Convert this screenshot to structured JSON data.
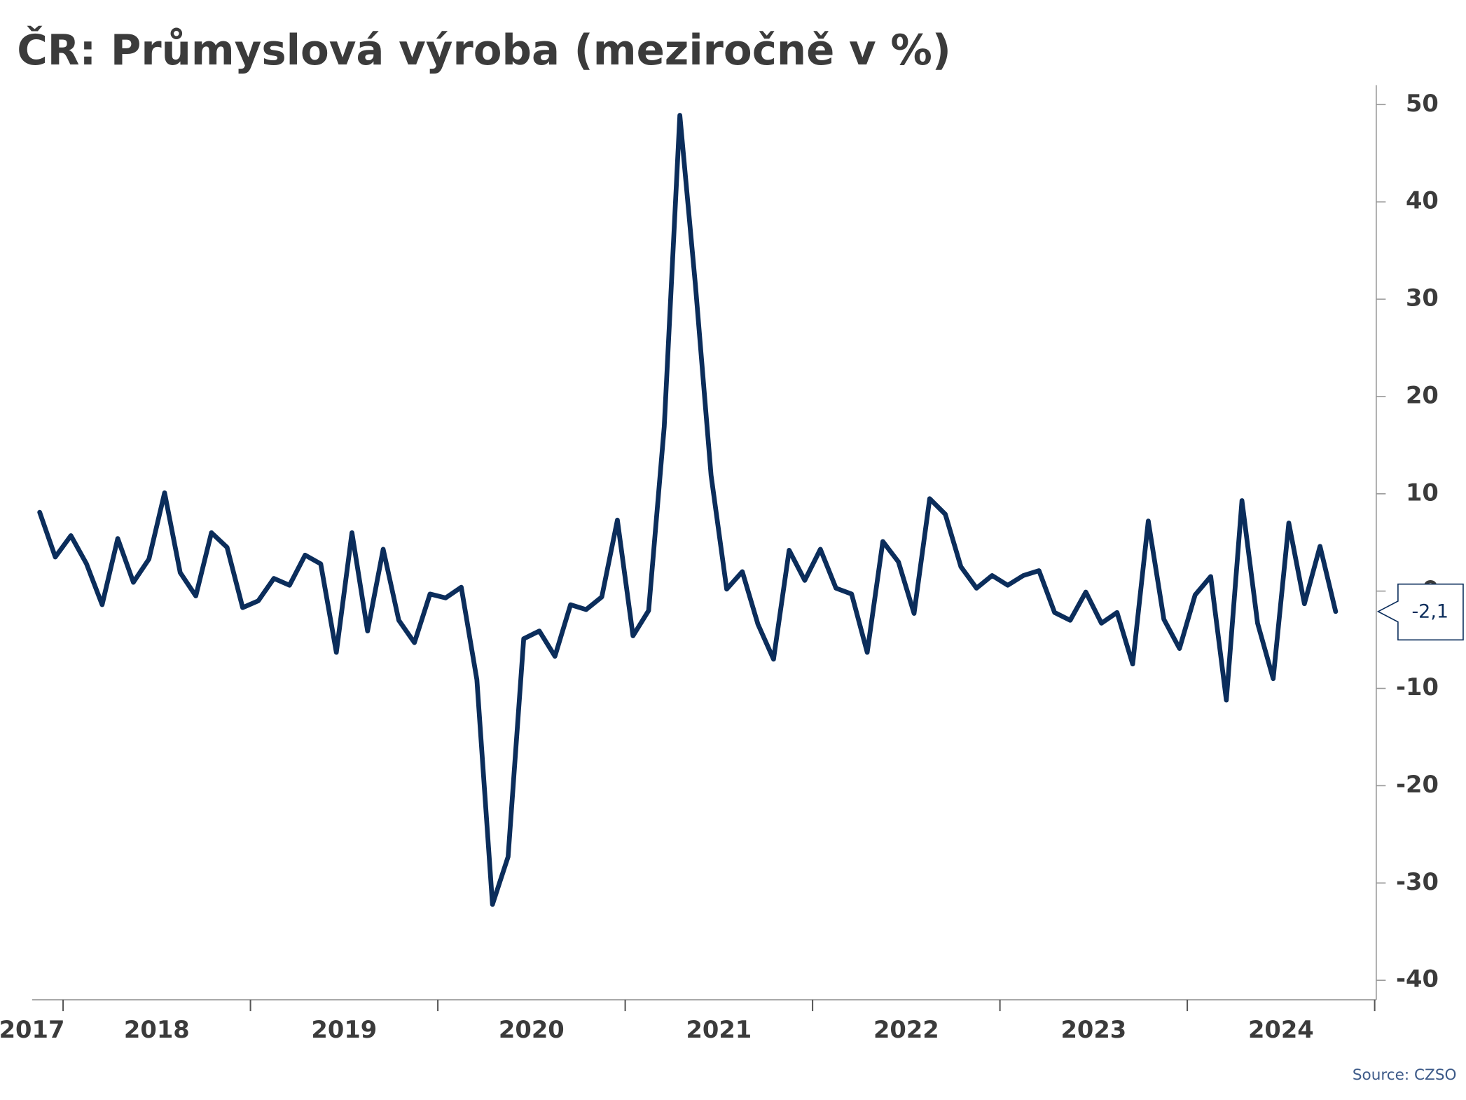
{
  "chart_data": {
    "type": "line",
    "title": "ČR: Průmyslová výroba (meziročně v %)",
    "source": "Source: CZSO",
    "categories": [
      "2017",
      null,
      null,
      null,
      null,
      null,
      null,
      null,
      "2018",
      null,
      null,
      null,
      null,
      null,
      null,
      null,
      null,
      null,
      null,
      null,
      "2019",
      null,
      null,
      null,
      null,
      null,
      null,
      null,
      null,
      null,
      null,
      null,
      "2020",
      null,
      null,
      null,
      null,
      null,
      null,
      null,
      null,
      null,
      null,
      null,
      "2021",
      null,
      null,
      null,
      null,
      null,
      null,
      null,
      null,
      null,
      null,
      null,
      "2022",
      null,
      null,
      null,
      null,
      null,
      null,
      null,
      null,
      null,
      null,
      null,
      "2023",
      null,
      null,
      null,
      null,
      null,
      null,
      null,
      null,
      null,
      null,
      null,
      "2024",
      null,
      null,
      null
    ],
    "series": [
      {
        "name": "Průmyslová výroba",
        "color": "#0b2d5b",
        "values": [
          8.1,
          3.5,
          5.7,
          2.8,
          -1.4,
          5.4,
          0.9,
          3.3,
          10.1,
          1.9,
          -0.5,
          6.0,
          4.5,
          -1.7,
          -1.0,
          1.3,
          0.6,
          3.7,
          2.8,
          -6.3,
          6.0,
          -4.1,
          4.3,
          -3.0,
          -5.3,
          -0.3,
          -0.7,
          0.4,
          -9.1,
          -32.2,
          -27.3,
          -4.9,
          -4.1,
          -6.7,
          -1.4,
          -1.9,
          -0.6,
          7.3,
          -4.6,
          -2.0,
          16.9,
          48.9,
          31.4,
          11.9,
          0.2,
          2.0,
          -3.4,
          -7.0,
          4.2,
          1.1,
          4.3,
          0.3,
          -0.3,
          -6.3,
          5.1,
          3.0,
          -2.3,
          9.5,
          7.9,
          2.5,
          0.3,
          1.6,
          0.6,
          1.6,
          2.1,
          -2.2,
          -3.0,
          -0.1,
          -3.3,
          -2.2,
          -7.5,
          7.2,
          -2.9,
          -5.9,
          -0.4,
          1.5,
          -11.2,
          9.3,
          -3.3,
          -9.0,
          7.0,
          -1.3,
          4.6,
          -2.1
        ],
        "value_labels": [
          null,
          null,
          null,
          null,
          null,
          null,
          null,
          null,
          null,
          null,
          null,
          null,
          null,
          null,
          null,
          null,
          null,
          null,
          null,
          null,
          null,
          null,
          null,
          null,
          null,
          null,
          null,
          null,
          null,
          null,
          null,
          null,
          null,
          null,
          null,
          null,
          null,
          null,
          null,
          null,
          null,
          null,
          null,
          null,
          null,
          null,
          null,
          null,
          null,
          null,
          null,
          null,
          null,
          null,
          null,
          null,
          null,
          null,
          null,
          null,
          null,
          null,
          null,
          null,
          null,
          null,
          null,
          null,
          null,
          null,
          null,
          null,
          null,
          null,
          null,
          null,
          null,
          null,
          null,
          null,
          null,
          null,
          null,
          "-2,1"
        ]
      }
    ],
    "ylim": [
      -42,
      52
    ],
    "yticks": [
      -40,
      -30,
      -20,
      -10,
      0,
      10,
      20,
      30,
      40,
      50
    ],
    "y_axis_side": "right"
  }
}
